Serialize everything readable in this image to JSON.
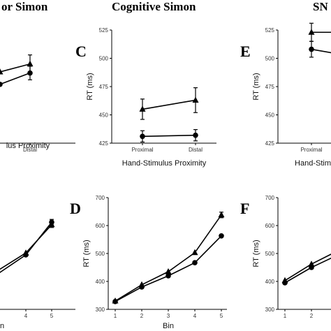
{
  "panel_titles": [
    "or Simon",
    "Cognitive Simon",
    "SN"
  ],
  "chart_data": [
    {
      "panel": "",
      "type": "line",
      "title": "",
      "xlabel": "lus Proximity",
      "ylabel": "",
      "x": [
        "Distal"
      ],
      "ylim": [
        425,
        525
      ],
      "series": [
        {
          "marker": "triangle",
          "values": [
            {
              "x": 0.5,
              "y": 488
            },
            {
              "x": 1,
              "y": 495,
              "err": 8
            }
          ]
        },
        {
          "marker": "circle",
          "values": [
            {
              "x": 0.5,
              "y": 477
            },
            {
              "x": 1,
              "y": 487,
              "err": 6
            }
          ]
        }
      ]
    },
    {
      "panel": "C",
      "type": "line",
      "title": "",
      "xlabel": "Hand-Stimulus Proximity",
      "ylabel": "RT (ms)",
      "x": [
        "Proximal",
        "Distal"
      ],
      "yticks": [
        425,
        450,
        475,
        500,
        525
      ],
      "ylim": [
        425,
        525
      ],
      "series": [
        {
          "marker": "triangle",
          "values": [
            {
              "x": 0,
              "y": 455,
              "err": 9
            },
            {
              "x": 1,
              "y": 463,
              "err": 11
            }
          ]
        },
        {
          "marker": "circle",
          "values": [
            {
              "x": 0,
              "y": 431,
              "err": 5
            },
            {
              "x": 1,
              "y": 432,
              "err": 5
            }
          ]
        }
      ]
    },
    {
      "panel": "E",
      "type": "line",
      "title": "",
      "xlabel": "Hand-Stim",
      "ylabel": "RT (ms)",
      "x": [
        "Proximal"
      ],
      "yticks": [
        425,
        450,
        475,
        500,
        525
      ],
      "ylim": [
        425,
        525
      ],
      "series": [
        {
          "marker": "triangle",
          "values": [
            {
              "x": 0,
              "y": 523,
              "err": 8
            },
            {
              "x": 1,
              "y": 523
            }
          ]
        },
        {
          "marker": "circle",
          "values": [
            {
              "x": 0,
              "y": 508,
              "err": 7
            },
            {
              "x": 1,
              "y": 500
            }
          ]
        }
      ]
    },
    {
      "panel": "",
      "type": "line",
      "title": "",
      "xlabel": "n",
      "ylabel": "",
      "x": [
        4,
        5
      ],
      "ylim": [
        300,
        700
      ],
      "series": [
        {
          "marker": "triangle",
          "values": [
            {
              "x": 3,
              "y": 425
            },
            {
              "x": 4,
              "y": 502
            },
            {
              "x": 5,
              "y": 603,
              "err": 10
            }
          ]
        },
        {
          "marker": "circle",
          "values": [
            {
              "x": 3,
              "y": 412
            },
            {
              "x": 4,
              "y": 495
            },
            {
              "x": 5,
              "y": 612,
              "err": 10
            }
          ]
        }
      ]
    },
    {
      "panel": "D",
      "type": "line",
      "title": "",
      "xlabel": "Bin",
      "ylabel": "RT (ms)",
      "x": [
        1,
        2,
        3,
        4,
        5
      ],
      "yticks": [
        300,
        400,
        500,
        600,
        700
      ],
      "ylim": [
        300,
        700
      ],
      "series": [
        {
          "marker": "triangle",
          "values": [
            {
              "x": 1,
              "y": 330
            },
            {
              "x": 2,
              "y": 388
            },
            {
              "x": 3,
              "y": 435
            },
            {
              "x": 4,
              "y": 503
            },
            {
              "x": 5,
              "y": 638,
              "err": 10
            }
          ]
        },
        {
          "marker": "circle",
          "values": [
            {
              "x": 1,
              "y": 328
            },
            {
              "x": 2,
              "y": 380
            },
            {
              "x": 3,
              "y": 420
            },
            {
              "x": 4,
              "y": 467
            },
            {
              "x": 5,
              "y": 563
            }
          ]
        }
      ]
    },
    {
      "panel": "F",
      "type": "line",
      "title": "",
      "xlabel": "",
      "ylabel": "RT (ms)",
      "x": [
        1,
        2
      ],
      "yticks": [
        300,
        400,
        500,
        600,
        700
      ],
      "ylim": [
        300,
        700
      ],
      "series": [
        {
          "marker": "triangle",
          "values": [
            {
              "x": 1,
              "y": 403
            },
            {
              "x": 2,
              "y": 462
            },
            {
              "x": 3,
              "y": 510
            }
          ]
        },
        {
          "marker": "circle",
          "values": [
            {
              "x": 1,
              "y": 395
            },
            {
              "x": 2,
              "y": 450
            },
            {
              "x": 3,
              "y": 495
            }
          ]
        }
      ]
    }
  ]
}
